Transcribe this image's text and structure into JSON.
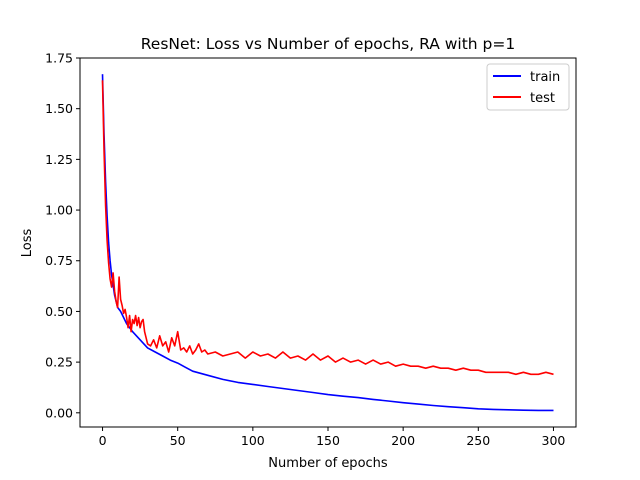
{
  "chart_data": {
    "type": "line",
    "title": "ResNet: Loss vs Number of epochs, RA with p=1",
    "xlabel": "Number of epochs",
    "ylabel": "Loss",
    "xlim": [
      -15,
      315
    ],
    "ylim": [
      -0.07,
      1.75
    ],
    "xticks": [
      0,
      50,
      100,
      150,
      200,
      250,
      300
    ],
    "yticks": [
      0.0,
      0.25,
      0.5,
      0.75,
      1.0,
      1.25,
      1.5,
      1.75
    ],
    "xtick_labels": [
      "0",
      "50",
      "100",
      "150",
      "200",
      "250",
      "300"
    ],
    "ytick_labels": [
      "0.00",
      "0.25",
      "0.50",
      "0.75",
      "1.00",
      "1.25",
      "1.50",
      "1.75"
    ],
    "grid": false,
    "legend_position": "top-right",
    "series": [
      {
        "name": "train",
        "color": "#0000ff",
        "x": [
          0,
          1,
          2,
          3,
          4,
          5,
          6,
          7,
          8,
          9,
          10,
          12,
          14,
          16,
          18,
          20,
          25,
          30,
          35,
          40,
          45,
          50,
          55,
          60,
          70,
          80,
          90,
          100,
          110,
          120,
          130,
          140,
          150,
          160,
          170,
          180,
          190,
          200,
          210,
          220,
          230,
          240,
          250,
          260,
          270,
          280,
          290,
          300
        ],
        "values": [
          1.67,
          1.38,
          1.14,
          0.97,
          0.84,
          0.75,
          0.68,
          0.63,
          0.58,
          0.55,
          0.52,
          0.5,
          0.47,
          0.44,
          0.42,
          0.4,
          0.36,
          0.32,
          0.3,
          0.28,
          0.26,
          0.245,
          0.225,
          0.205,
          0.185,
          0.165,
          0.15,
          0.14,
          0.13,
          0.12,
          0.11,
          0.1,
          0.09,
          0.082,
          0.075,
          0.066,
          0.058,
          0.05,
          0.043,
          0.036,
          0.03,
          0.025,
          0.02,
          0.017,
          0.015,
          0.013,
          0.012,
          0.012
        ]
      },
      {
        "name": "test",
        "color": "#ff0000",
        "x": [
          0,
          1,
          2,
          3,
          4,
          5,
          6,
          7,
          8,
          9,
          10,
          11,
          12,
          13,
          14,
          15,
          16,
          17,
          18,
          19,
          20,
          21,
          22,
          23,
          24,
          25,
          26,
          27,
          28,
          30,
          32,
          34,
          36,
          38,
          40,
          42,
          44,
          46,
          48,
          50,
          52,
          54,
          56,
          58,
          60,
          62,
          64,
          66,
          68,
          70,
          75,
          80,
          85,
          90,
          95,
          100,
          105,
          110,
          115,
          120,
          125,
          130,
          135,
          140,
          145,
          150,
          155,
          160,
          165,
          170,
          175,
          180,
          185,
          190,
          195,
          200,
          205,
          210,
          215,
          220,
          225,
          230,
          235,
          240,
          245,
          250,
          255,
          260,
          265,
          270,
          275,
          280,
          285,
          290,
          295,
          300
        ],
        "values": [
          1.64,
          1.3,
          1.02,
          0.85,
          0.74,
          0.66,
          0.62,
          0.69,
          0.6,
          0.55,
          0.52,
          0.67,
          0.56,
          0.53,
          0.49,
          0.51,
          0.47,
          0.42,
          0.48,
          0.4,
          0.46,
          0.44,
          0.48,
          0.43,
          0.47,
          0.42,
          0.45,
          0.46,
          0.4,
          0.34,
          0.33,
          0.36,
          0.32,
          0.38,
          0.33,
          0.35,
          0.3,
          0.37,
          0.33,
          0.4,
          0.31,
          0.32,
          0.3,
          0.33,
          0.29,
          0.31,
          0.34,
          0.3,
          0.31,
          0.29,
          0.3,
          0.28,
          0.29,
          0.3,
          0.27,
          0.3,
          0.28,
          0.29,
          0.27,
          0.3,
          0.27,
          0.28,
          0.26,
          0.29,
          0.26,
          0.28,
          0.25,
          0.27,
          0.25,
          0.26,
          0.24,
          0.26,
          0.24,
          0.25,
          0.23,
          0.24,
          0.23,
          0.23,
          0.22,
          0.23,
          0.22,
          0.22,
          0.21,
          0.22,
          0.21,
          0.21,
          0.2,
          0.2,
          0.2,
          0.2,
          0.19,
          0.2,
          0.19,
          0.19,
          0.2,
          0.19
        ]
      }
    ]
  }
}
